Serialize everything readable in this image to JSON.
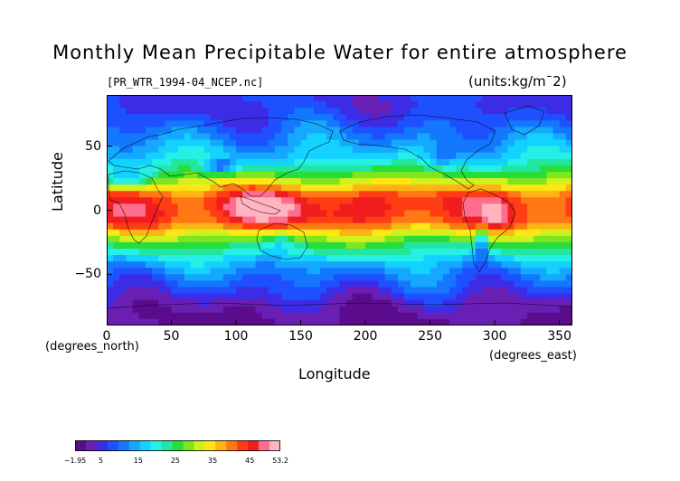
{
  "title": "Monthly Mean Precipitable Water for entire atmosphere",
  "file_label": "[PR_WTR_1994-04_NCEP.nc]",
  "units_label": "(units:kg/m¯2)",
  "y_axis": {
    "label": "Latitude",
    "note": "(degrees_north)",
    "ticks": [
      {
        "label": "50",
        "value": 50
      },
      {
        "label": "0",
        "value": 0
      },
      {
        "label": "−50",
        "value": -50
      }
    ],
    "range": [
      -90,
      90
    ]
  },
  "x_axis": {
    "label": "Longitude",
    "note": "(degrees_east)",
    "ticks": [
      {
        "label": "0",
        "value": 0
      },
      {
        "label": "50",
        "value": 50
      },
      {
        "label": "100",
        "value": 100
      },
      {
        "label": "150",
        "value": 150
      },
      {
        "label": "200",
        "value": 200
      },
      {
        "label": "250",
        "value": 250
      },
      {
        "label": "300",
        "value": 300
      },
      {
        "label": "350",
        "value": 350
      }
    ],
    "range": [
      0,
      360
    ]
  },
  "colorbar": {
    "labels": [
      {
        "text": "−1.95",
        "value": -1.95
      },
      {
        "text": "5",
        "value": 5
      },
      {
        "text": "15",
        "value": 15
      },
      {
        "text": "25",
        "value": 25
      },
      {
        "text": "35",
        "value": 35
      },
      {
        "text": "45",
        "value": 45
      },
      {
        "text": "53.2",
        "value": 53.2
      }
    ],
    "min": -1.95,
    "max": 53.2,
    "colors": [
      "#5a0c8c",
      "#6a1fb4",
      "#3c2ce6",
      "#1f50ff",
      "#1478ff",
      "#14a8ff",
      "#14d2ff",
      "#26f0e6",
      "#22e6a0",
      "#28dc3c",
      "#7ce61e",
      "#d2f01e",
      "#ffe614",
      "#ffb414",
      "#ff7814",
      "#ff3c14",
      "#f01e1e",
      "#ff6e8c",
      "#ffb4c0"
    ]
  },
  "map": {
    "type": "heatmap",
    "variable": "precipitable water",
    "zonal_profile": [
      {
        "lat": 90,
        "value": 6
      },
      {
        "lat": 80,
        "value": 6
      },
      {
        "lat": 70,
        "value": 8
      },
      {
        "lat": 60,
        "value": 11
      },
      {
        "lat": 50,
        "value": 14
      },
      {
        "lat": 40,
        "value": 18
      },
      {
        "lat": 30,
        "value": 25
      },
      {
        "lat": 20,
        "value": 34
      },
      {
        "lat": 10,
        "value": 44
      },
      {
        "lat": 0,
        "value": 45
      },
      {
        "lat": -10,
        "value": 42
      },
      {
        "lat": -20,
        "value": 31
      },
      {
        "lat": -30,
        "value": 23
      },
      {
        "lat": -40,
        "value": 16
      },
      {
        "lat": -50,
        "value": 11
      },
      {
        "lat": -60,
        "value": 8
      },
      {
        "lat": -70,
        "value": 4
      },
      {
        "lat": -80,
        "value": 1
      },
      {
        "lat": -90,
        "value": 0
      }
    ]
  }
}
